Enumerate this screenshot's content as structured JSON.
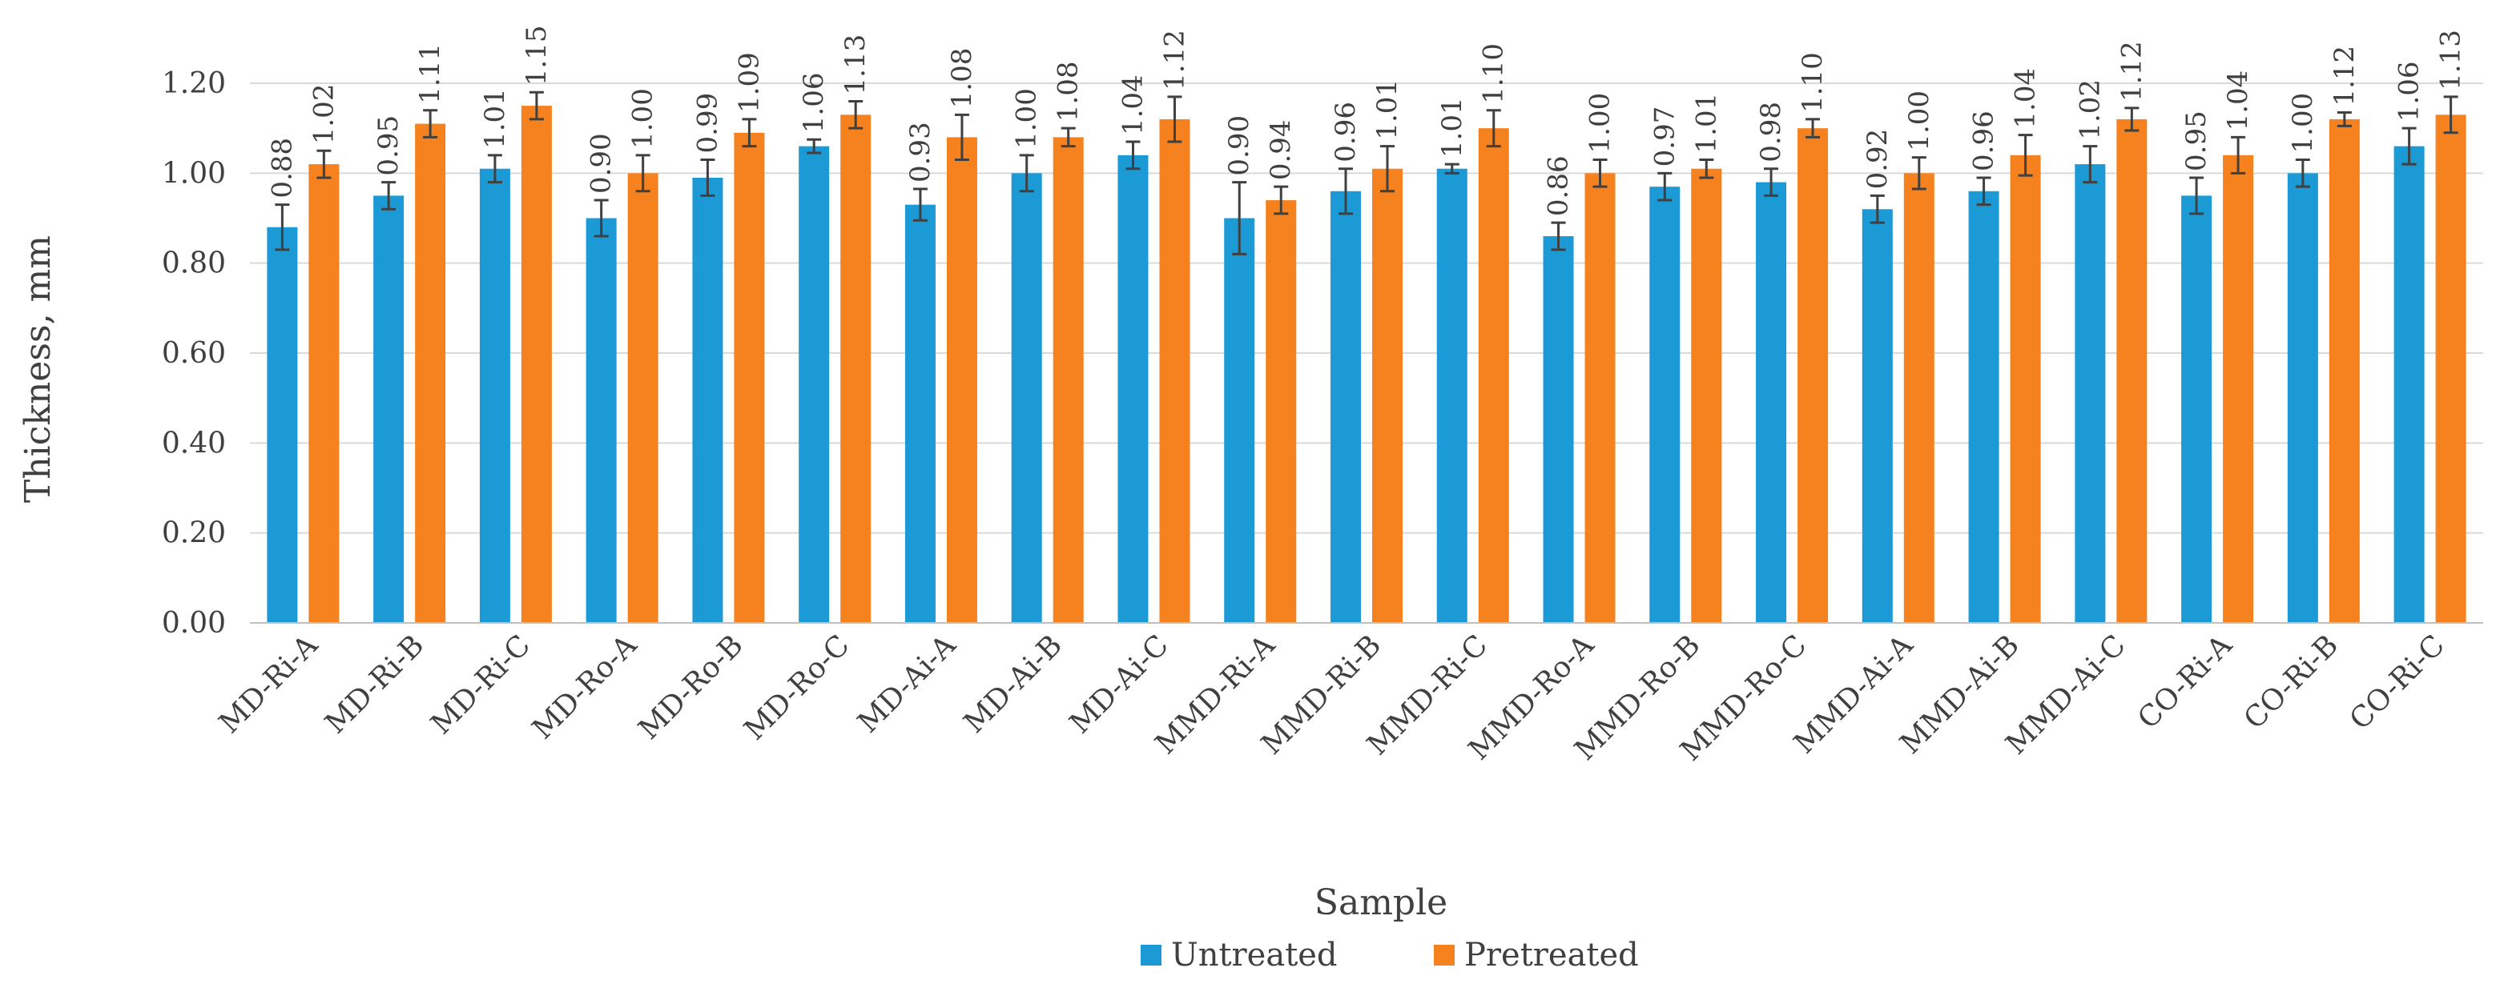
{
  "chart_data": {
    "type": "bar",
    "title": "",
    "xlabel": "Sample",
    "ylabel": "Thickness, mm",
    "ylim": [
      0,
      1.2
    ],
    "yticks": [
      "0.00",
      "0.20",
      "0.40",
      "0.60",
      "0.80",
      "1.00",
      "1.20"
    ],
    "grid": "horizontal",
    "legend_position": "bottom",
    "categories": [
      "MD-Ri-A",
      "MD-Ri-B",
      "MD-Ri-C",
      "MD-Ro-A",
      "MD-Ro-B",
      "MD-Ro-C",
      "MD-Ai-A",
      "MD-Ai-B",
      "MD-Ai-C",
      "MMD-Ri-A",
      "MMD-Ri-B",
      "MMD-Ri-C",
      "MMD-Ro-A",
      "MMD-Ro-B",
      "MMD-Ro-C",
      "MMD-Ai-A",
      "MMD-Ai-B",
      "MMD-Ai-C",
      "CO-Ri-A",
      "CO-Ri-B",
      "CO-Ri-C"
    ],
    "series": [
      {
        "name": "Untreated",
        "color": "#1B9AD6",
        "values": [
          0.88,
          0.95,
          1.01,
          0.9,
          0.99,
          1.06,
          0.93,
          1.0,
          1.04,
          0.9,
          0.96,
          1.01,
          0.86,
          0.97,
          0.98,
          0.92,
          0.96,
          1.02,
          0.95,
          1.0,
          1.06
        ],
        "labels": [
          "0.88",
          "0.95",
          "1.01",
          "0.90",
          "0.99",
          "1.06",
          "0.93",
          "1.00",
          "1.04",
          "0.90",
          "0.96",
          "1.01",
          "0.86",
          "0.97",
          "0.98",
          "0.92",
          "0.96",
          "1.02",
          "0.95",
          "1.00",
          "1.06"
        ],
        "errors": [
          0.05,
          0.03,
          0.03,
          0.04,
          0.04,
          0.015,
          0.035,
          0.04,
          0.03,
          0.08,
          0.05,
          0.01,
          0.03,
          0.03,
          0.03,
          0.03,
          0.03,
          0.04,
          0.04,
          0.03,
          0.04
        ]
      },
      {
        "name": "Pretreated",
        "color": "#F5821F",
        "values": [
          1.02,
          1.11,
          1.15,
          1.0,
          1.09,
          1.13,
          1.08,
          1.08,
          1.12,
          0.94,
          1.01,
          1.1,
          1.0,
          1.01,
          1.1,
          1.0,
          1.04,
          1.12,
          1.04,
          1.12,
          1.13
        ],
        "labels": [
          "1.02",
          "1.11",
          "1.15",
          "1.00",
          "1.09",
          "1.13",
          "1.08",
          "1.08",
          "1.12",
          "0.94",
          "1.01",
          "1.10",
          "1.00",
          "1.01",
          "1.10",
          "1.00",
          "1.04",
          "1.12",
          "1.04",
          "1.12",
          "1.13"
        ],
        "errors": [
          0.03,
          0.03,
          0.03,
          0.04,
          0.03,
          0.03,
          0.05,
          0.02,
          0.05,
          0.03,
          0.05,
          0.04,
          0.03,
          0.02,
          0.02,
          0.035,
          0.045,
          0.025,
          0.04,
          0.015,
          0.04
        ]
      }
    ]
  }
}
